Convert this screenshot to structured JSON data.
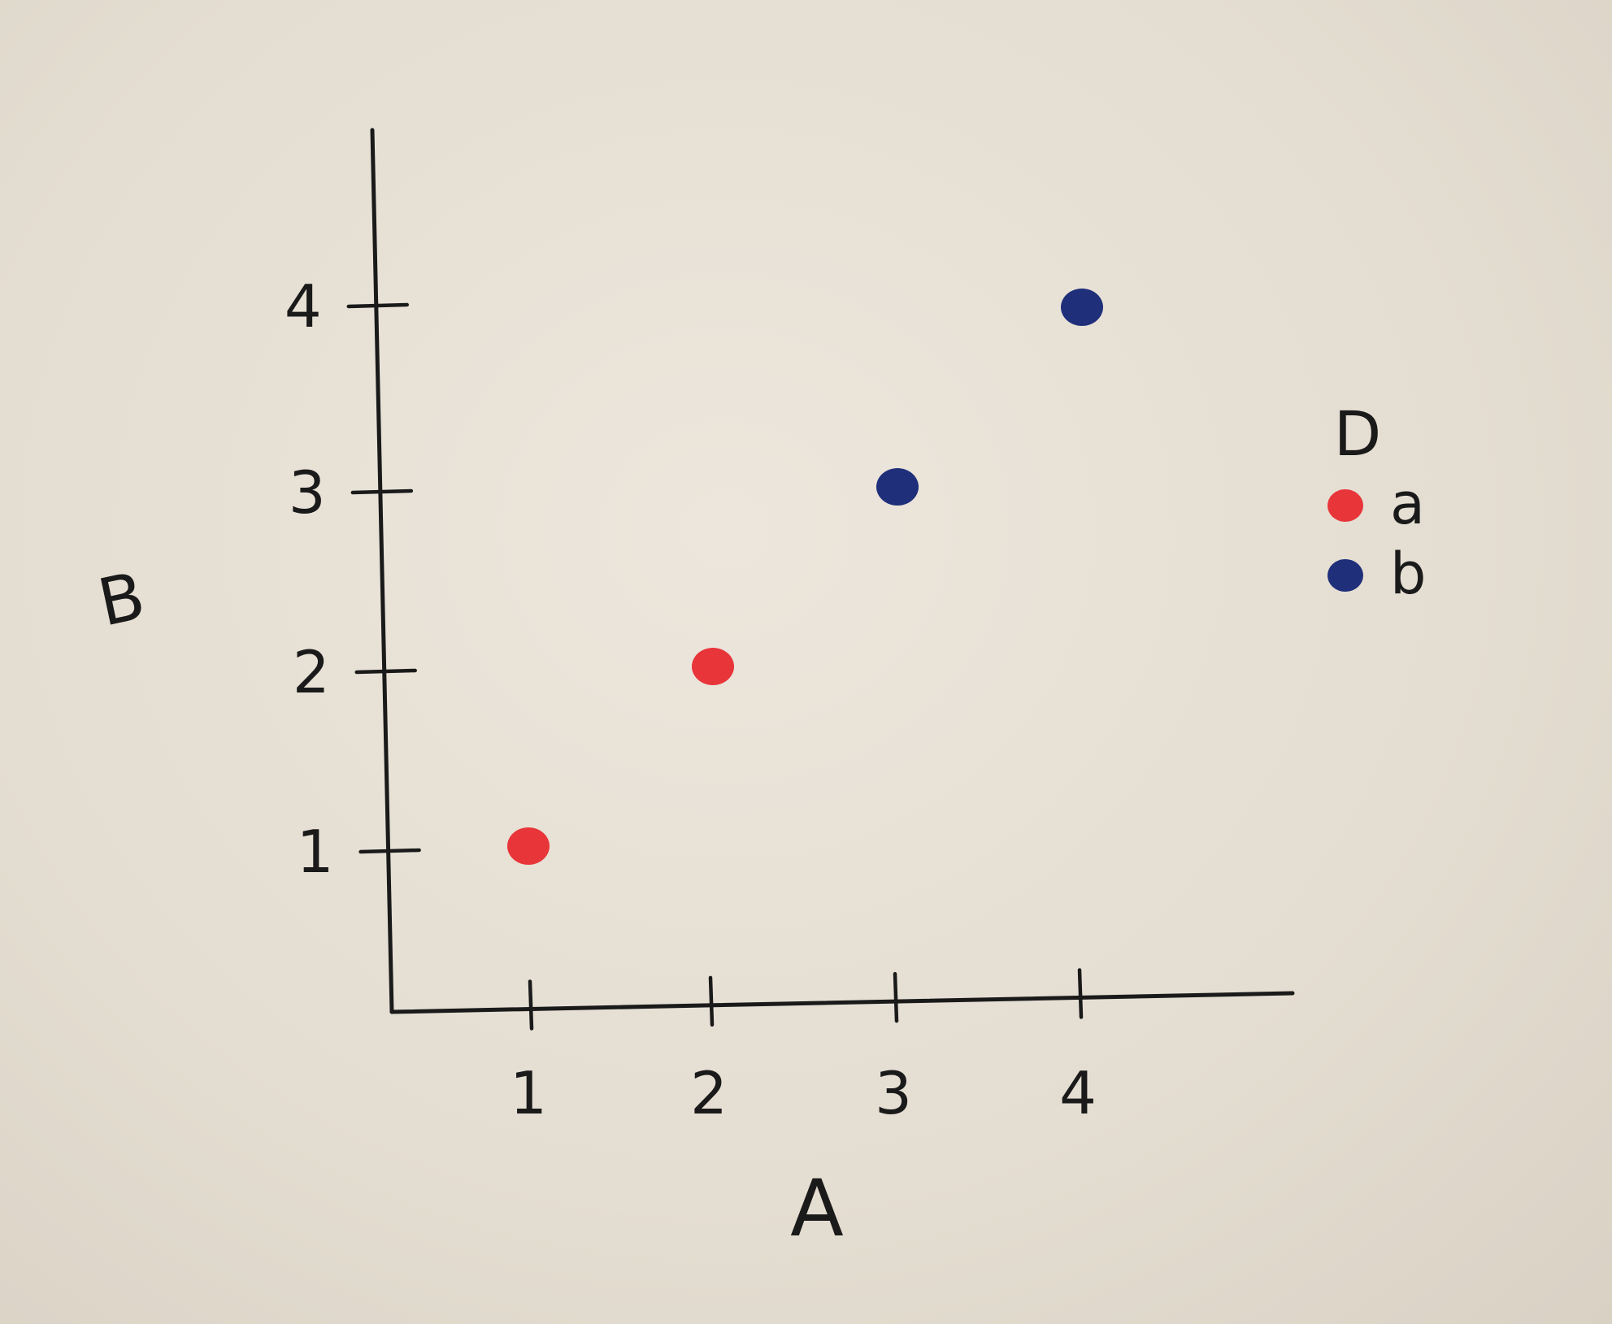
{
  "chart_data": {
    "type": "scatter",
    "title": "",
    "xlabel": "A",
    "ylabel": "B",
    "xlim": [
      0,
      4.9
    ],
    "ylim": [
      0,
      4.9
    ],
    "x_ticks": [
      "1",
      "2",
      "3",
      "4"
    ],
    "y_ticks": [
      "1",
      "2",
      "3",
      "4"
    ],
    "grid": false,
    "legend": {
      "title": "D",
      "placement": "right",
      "entries": [
        {
          "label": "a",
          "color": "#e8353a"
        },
        {
          "label": "b",
          "color": "#1f2f7a"
        }
      ]
    },
    "series": [
      {
        "name": "a",
        "color": "#e8353a",
        "points": [
          {
            "x": 1,
            "y": 1
          },
          {
            "x": 2,
            "y": 2
          }
        ]
      },
      {
        "name": "b",
        "color": "#1f2f7a",
        "points": [
          {
            "x": 3,
            "y": 3
          },
          {
            "x": 4,
            "y": 4
          }
        ]
      }
    ]
  }
}
